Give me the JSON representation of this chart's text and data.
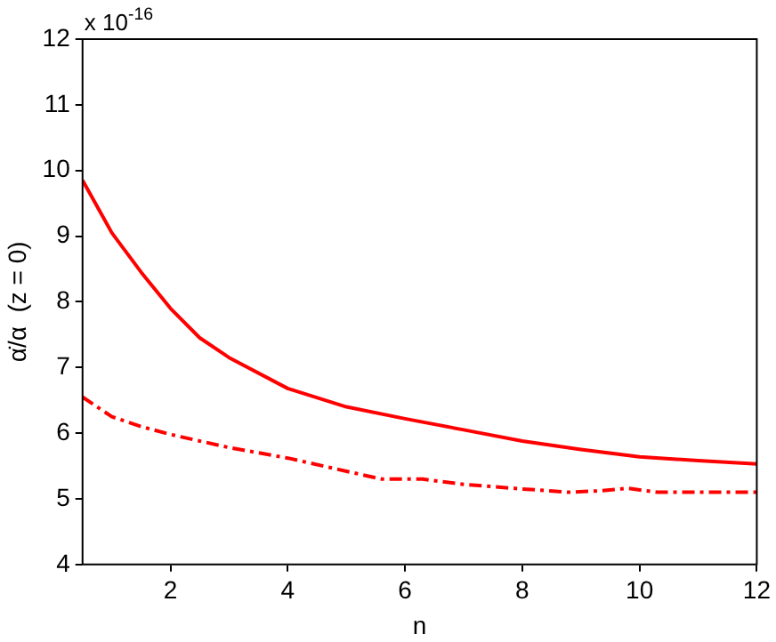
{
  "chart_data": {
    "type": "line",
    "xlabel": "n",
    "ylabel": "α̇/α  (z = 0)",
    "annotations": [
      "x 10$^{-16}$"
    ],
    "xlim": [
      0.5,
      12
    ],
    "xticks": [
      2,
      4,
      6,
      8,
      10,
      12
    ],
    "ylim": [
      4,
      12
    ],
    "yticks": [
      4,
      5,
      6,
      7,
      8,
      9,
      10,
      11,
      12
    ],
    "grid": false,
    "legend": false,
    "marker": "none",
    "series": [
      {
        "color": "#ff0000",
        "line_style": "solid",
        "x": [
          0.5,
          0.75,
          1,
          1.5,
          2,
          2.5,
          3,
          4,
          5,
          6,
          7,
          8,
          9,
          10,
          11,
          12
        ],
        "values": [
          9.85,
          9.45,
          9.05,
          8.45,
          7.9,
          7.45,
          7.15,
          6.68,
          6.4,
          6.22,
          6.05,
          5.88,
          5.75,
          5.64,
          5.58,
          5.53
        ]
      },
      {
        "color": "#ff0000",
        "line_style": "dashed",
        "x": [
          0.5,
          1,
          1.5,
          2,
          3,
          4,
          5,
          5.6,
          6.3,
          7,
          8,
          8.8,
          9.3,
          9.8,
          10.3,
          11,
          12
        ],
        "values": [
          6.55,
          6.25,
          6.1,
          5.98,
          5.78,
          5.62,
          5.42,
          5.3,
          5.3,
          5.22,
          5.15,
          5.1,
          5.12,
          5.16,
          5.1,
          5.1,
          5.1
        ]
      }
    ]
  }
}
